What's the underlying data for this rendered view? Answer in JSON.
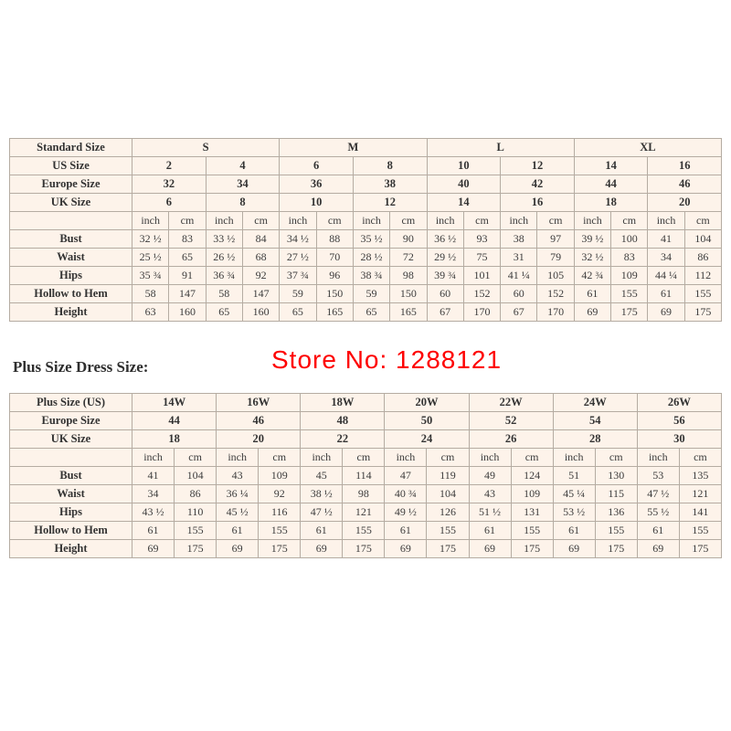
{
  "watermark": "Store No: 1288121",
  "plus_size_heading": "Plus Size Dress Size:",
  "colors": {
    "table_bg": "#fdf3ea",
    "border": "#b5aca2",
    "text": "#3c3c3c",
    "watermark_red": "#fe0000"
  },
  "standard_table": {
    "corner": "Standard Size",
    "groups": [
      "S",
      "M",
      "L",
      "XL"
    ],
    "group_span": 4,
    "header_rows": [
      {
        "label": "US Size",
        "values": [
          "2",
          "4",
          "6",
          "8",
          "10",
          "12",
          "14",
          "16"
        ]
      },
      {
        "label": "Europe Size",
        "values": [
          "32",
          "34",
          "36",
          "38",
          "40",
          "42",
          "44",
          "46"
        ]
      },
      {
        "label": "UK Size",
        "values": [
          "6",
          "8",
          "10",
          "12",
          "14",
          "16",
          "18",
          "20"
        ]
      }
    ],
    "units": [
      "inch",
      "cm"
    ],
    "unit_count": 8,
    "measure_rows": [
      {
        "label": "Bust",
        "values": [
          "32 ½",
          "83",
          "33 ½",
          "84",
          "34 ½",
          "88",
          "35 ½",
          "90",
          "36 ½",
          "93",
          "38",
          "97",
          "39 ½",
          "100",
          "41",
          "104"
        ]
      },
      {
        "label": "Waist",
        "values": [
          "25 ½",
          "65",
          "26 ½",
          "68",
          "27 ½",
          "70",
          "28 ½",
          "72",
          "29 ½",
          "75",
          "31",
          "79",
          "32 ½",
          "83",
          "34",
          "86"
        ]
      },
      {
        "label": "Hips",
        "values": [
          "35 ¾",
          "91",
          "36 ¾",
          "92",
          "37 ¾",
          "96",
          "38 ¾",
          "98",
          "39 ¾",
          "101",
          "41 ¼",
          "105",
          "42 ¾",
          "109",
          "44 ¼",
          "112"
        ]
      },
      {
        "label": "Hollow to Hem",
        "values": [
          "58",
          "147",
          "58",
          "147",
          "59",
          "150",
          "59",
          "150",
          "60",
          "152",
          "60",
          "152",
          "61",
          "155",
          "61",
          "155"
        ]
      },
      {
        "label": "Height",
        "values": [
          "63",
          "160",
          "65",
          "160",
          "65",
          "165",
          "65",
          "165",
          "67",
          "170",
          "67",
          "170",
          "69",
          "175",
          "69",
          "175"
        ]
      }
    ]
  },
  "plus_table": {
    "corner": "Plus Size (US)",
    "groups": [
      "14W",
      "16W",
      "18W",
      "20W",
      "22W",
      "24W",
      "26W"
    ],
    "group_span": 2,
    "header_rows": [
      {
        "label": "Europe Size",
        "values": [
          "44",
          "46",
          "48",
          "50",
          "52",
          "54",
          "56"
        ]
      },
      {
        "label": "UK Size",
        "values": [
          "18",
          "20",
          "22",
          "24",
          "26",
          "28",
          "30"
        ]
      }
    ],
    "units": [
      "inch",
      "cm"
    ],
    "unit_count": 7,
    "measure_rows": [
      {
        "label": "Bust",
        "values": [
          "41",
          "104",
          "43",
          "109",
          "45",
          "114",
          "47",
          "119",
          "49",
          "124",
          "51",
          "130",
          "53",
          "135"
        ]
      },
      {
        "label": "Waist",
        "values": [
          "34",
          "86",
          "36 ¼",
          "92",
          "38 ½",
          "98",
          "40 ¾",
          "104",
          "43",
          "109",
          "45 ¼",
          "115",
          "47 ½",
          "121"
        ]
      },
      {
        "label": "Hips",
        "values": [
          "43 ½",
          "110",
          "45 ½",
          "116",
          "47 ½",
          "121",
          "49 ½",
          "126",
          "51 ½",
          "131",
          "53 ½",
          "136",
          "55 ½",
          "141"
        ]
      },
      {
        "label": "Hollow to Hem",
        "values": [
          "61",
          "155",
          "61",
          "155",
          "61",
          "155",
          "61",
          "155",
          "61",
          "155",
          "61",
          "155",
          "61",
          "155"
        ]
      },
      {
        "label": "Height",
        "values": [
          "69",
          "175",
          "69",
          "175",
          "69",
          "175",
          "69",
          "175",
          "69",
          "175",
          "69",
          "175",
          "69",
          "175"
        ]
      }
    ]
  }
}
